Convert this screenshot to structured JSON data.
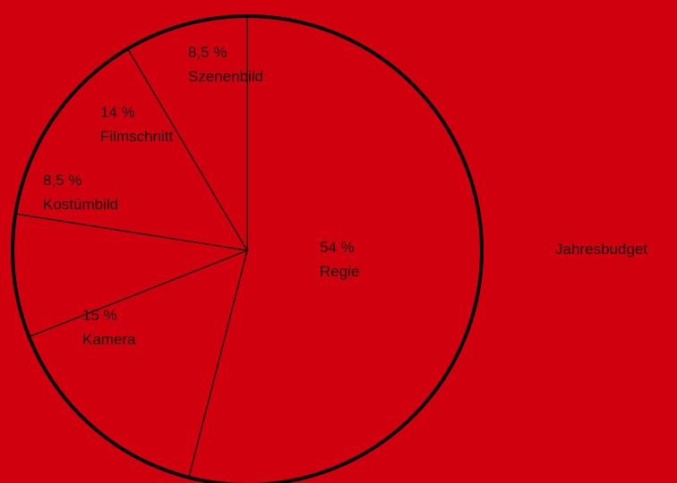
{
  "background_color": "#d0000e",
  "line_color": "#000000",
  "text_color": "#111111",
  "chart_data": {
    "type": "pie",
    "title": "Jahresbudget",
    "slices": [
      {
        "label": "Regie",
        "value": 54,
        "value_label": "54 %"
      },
      {
        "label": "Kamera",
        "value": 15,
        "value_label": "15 %"
      },
      {
        "label": "Kostümbild",
        "value": 8.5,
        "value_label": "8,5 %"
      },
      {
        "label": "Filmschnitt",
        "value": 14,
        "value_label": "14 %"
      },
      {
        "label": "Szenenbild",
        "value": 8.5,
        "value_label": "8,5 %"
      }
    ]
  }
}
